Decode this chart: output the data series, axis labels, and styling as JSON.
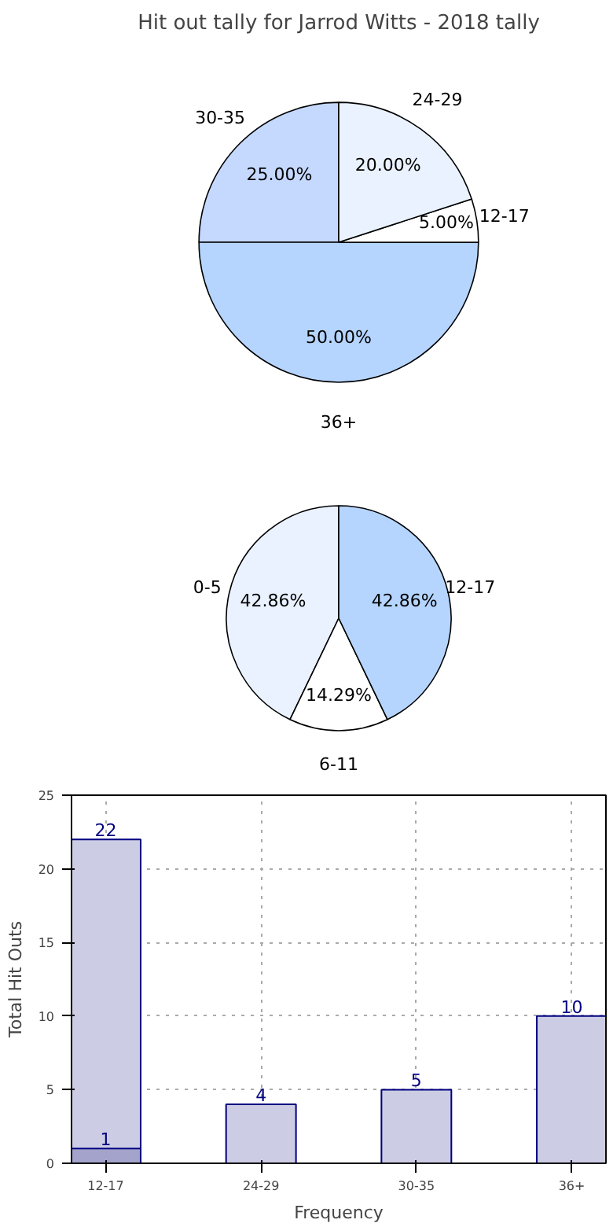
{
  "chart_data": [
    {
      "type": "pie",
      "title": "Hit out tally for Jarrod Witts - 2018 tally",
      "categories": [
        "30-35",
        "36+",
        "12-17",
        "24-29"
      ],
      "values": [
        25,
        50,
        5,
        20
      ],
      "value_labels": [
        "25.00%",
        "50.00%",
        "5.00%",
        "20.00%"
      ],
      "colors": [
        "#c5d9ff",
        "#b5d5ff",
        "#ffffff",
        "#eaf2ff"
      ]
    },
    {
      "type": "pie",
      "categories": [
        "0-5",
        "6-11",
        "12-17"
      ],
      "values": [
        42.86,
        14.29,
        42.86
      ],
      "value_labels": [
        "42.86%",
        "14.29%",
        "42.86%"
      ],
      "colors": [
        "#eaf2ff",
        "#ffffff",
        "#b5d5ff"
      ]
    },
    {
      "type": "bar",
      "categories": [
        "12-17",
        "24-29",
        "30-35",
        "36+"
      ],
      "xlabel": "Frequency",
      "ylabel": "Total Hit Outs",
      "series": [
        {
          "color": "#cccce4",
          "values": [
            22,
            4,
            5,
            10
          ]
        },
        {
          "color": "#a3a3cc",
          "values": [
            1,
            null,
            null,
            null
          ]
        }
      ],
      "ylim": [
        0,
        25
      ],
      "yticks": [
        0,
        5,
        10,
        15,
        20,
        25
      ],
      "grid": true,
      "line_style": "dotted",
      "data_labels": true
    }
  ]
}
